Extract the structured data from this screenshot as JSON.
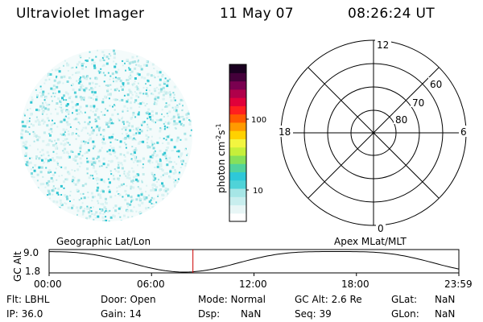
{
  "header": {
    "title": "Ultraviolet Imager",
    "date": "11 May 07",
    "time": "08:26:24 UT"
  },
  "colorbar": {
    "label": "photon cm",
    "label_sup1": "-2",
    "label_mid": "s",
    "label_sup2": "-1",
    "ticks": [
      "100",
      "10"
    ],
    "colors": [
      "#ffffff",
      "#e8f6f6",
      "#c8eeee",
      "#a6e6e6",
      "#4fd3d8",
      "#2ec8d8",
      "#52d39c",
      "#86e05a",
      "#c6ef3a",
      "#f2f540",
      "#ffd100",
      "#ff9a00",
      "#ff5a00",
      "#ff1f1f",
      "#e0003a",
      "#b0004a",
      "#7a0050",
      "#44003a",
      "#1a0020"
    ]
  },
  "polar": {
    "mlt_labels": {
      "top": "12",
      "left": "18",
      "right": "6",
      "bottom": "0"
    },
    "lat_labels": [
      "60",
      "70",
      "80"
    ]
  },
  "timeline": {
    "left_title": "Geographic Lat/Lon",
    "right_title": "Apex MLat/MLT",
    "axis_label": "GC Alt",
    "y_ticks": [
      "9.0",
      "1.8"
    ],
    "x_ticks": [
      "00:00",
      "06:00",
      "12:00",
      "18:00",
      "23:59"
    ],
    "current_time_fraction": 0.351,
    "marker_color": "#cc0000"
  },
  "footer": {
    "flt": "Flt: LBHL",
    "ip": "IP: 36.0",
    "door": "Door: Open",
    "gain": "Gain: 14",
    "mode": "Mode: Normal",
    "dsp_label": "Dsp:",
    "dsp_value": "NaN",
    "gcalt": "GC Alt: 2.6 Re",
    "seq": "Seq: 39",
    "glat_label": "GLat:",
    "glat_value": "NaN",
    "glon_label": "GLon:",
    "glon_value": "NaN"
  }
}
